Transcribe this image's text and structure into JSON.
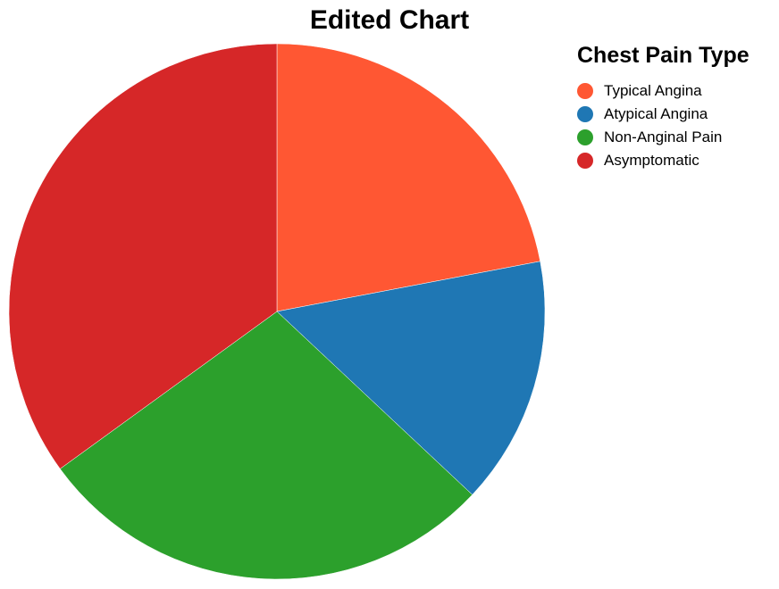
{
  "chart_data": {
    "type": "pie",
    "title": "Edited Chart",
    "legend": {
      "title": "Chest Pain Type",
      "placement": "top-right"
    },
    "categories": [
      "Typical Angina",
      "Atypical Angina",
      "Non-Anginal Pain",
      "Asymptomatic"
    ],
    "values": [
      22,
      15,
      28,
      35
    ],
    "colors": [
      "#ff5733",
      "#1f77b4",
      "#2ca02c",
      "#d62728"
    ]
  }
}
